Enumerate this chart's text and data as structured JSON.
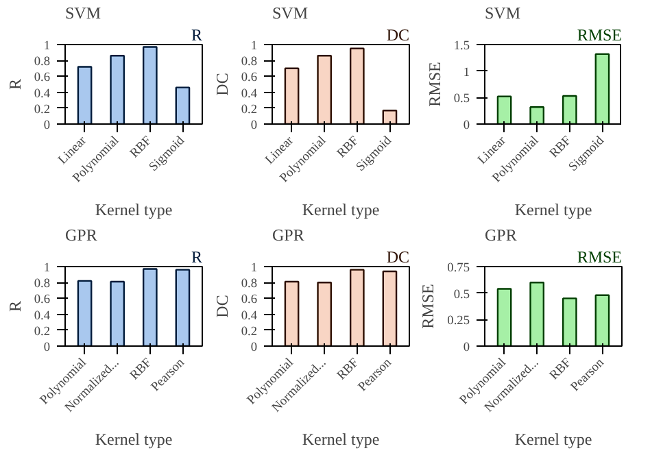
{
  "chart_data": [
    {
      "type": "bar",
      "title": "SVM",
      "xlabel": "Kernel type",
      "ylabel": "R",
      "categories": [
        "Linear",
        "Polynomial",
        "RBF",
        "Sigmoid"
      ],
      "series": [
        {
          "name": "R",
          "color": "#a9c8ee",
          "values": [
            0.72,
            0.86,
            0.97,
            0.46
          ]
        }
      ],
      "ylim": [
        0,
        1
      ],
      "yticks": [
        0,
        0.2,
        0.4,
        0.6,
        0.8,
        1
      ],
      "legend": "top",
      "grid": false
    },
    {
      "type": "bar",
      "title": "SVM",
      "xlabel": "Kernel type",
      "ylabel": "DC",
      "categories": [
        "Linear",
        "Polynomial",
        "RBF",
        "Sigmoid"
      ],
      "series": [
        {
          "name": "DC",
          "color": "#f8d5c4",
          "values": [
            0.7,
            0.86,
            0.95,
            0.17
          ]
        }
      ],
      "ylim": [
        0,
        1
      ],
      "yticks": [
        0,
        0.2,
        0.4,
        0.6,
        0.8,
        1
      ],
      "legend": "top",
      "grid": false
    },
    {
      "type": "bar",
      "title": "SVM",
      "xlabel": "Kernel type",
      "ylabel": "RMSE",
      "categories": [
        "Linear",
        "Polynomial",
        "RBF",
        "Sigmoid"
      ],
      "series": [
        {
          "name": "RMSE",
          "color": "#a6f0a6",
          "values": [
            0.52,
            0.32,
            0.53,
            1.32
          ]
        }
      ],
      "ylim": [
        0,
        1.5
      ],
      "yticks": [
        0,
        0.5,
        1,
        1.5
      ],
      "legend": "top",
      "grid": false
    },
    {
      "type": "bar",
      "title": "GPR",
      "xlabel": "Kernel type",
      "ylabel": "R",
      "categories": [
        "Polynomial",
        "Normalized...",
        "RBF",
        "Pearson"
      ],
      "series": [
        {
          "name": "R",
          "color": "#a9c8ee",
          "values": [
            0.82,
            0.81,
            0.97,
            0.96
          ]
        }
      ],
      "ylim": [
        0,
        1
      ],
      "yticks": [
        0,
        0.2,
        0.4,
        0.6,
        0.8,
        1
      ],
      "legend": "top",
      "grid": false
    },
    {
      "type": "bar",
      "title": "GPR",
      "xlabel": "Kernel type",
      "ylabel": "DC",
      "categories": [
        "Polynomial",
        "Normalized...",
        "RBF",
        "Pearson"
      ],
      "series": [
        {
          "name": "DC",
          "color": "#f8d5c4",
          "values": [
            0.81,
            0.8,
            0.96,
            0.94
          ]
        }
      ],
      "ylim": [
        0,
        1
      ],
      "yticks": [
        0,
        0.2,
        0.4,
        0.6,
        0.8,
        1
      ],
      "legend": "top",
      "grid": false
    },
    {
      "type": "bar",
      "title": "GPR",
      "xlabel": "Kernel type",
      "ylabel": "RMSE",
      "categories": [
        "Polynomial",
        "Normalized...",
        "RBF",
        "Pearson"
      ],
      "series": [
        {
          "name": "RMSE",
          "color": "#a6f0a6",
          "values": [
            0.54,
            0.6,
            0.45,
            0.48
          ]
        }
      ],
      "ylim": [
        0,
        0.75
      ],
      "yticks": [
        0,
        0.25,
        0.5,
        0.75
      ],
      "legend": "top",
      "grid": false
    }
  ]
}
